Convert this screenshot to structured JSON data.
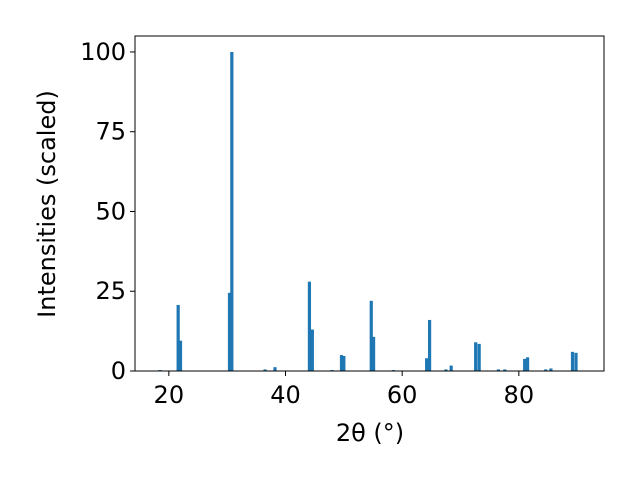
{
  "chart_data": {
    "type": "bar",
    "xlabel": "2θ (°)",
    "ylabel": "Intensities (scaled)",
    "x": [
      18.5,
      21.6,
      22.0,
      30.4,
      30.8,
      36.5,
      38.2,
      44.1,
      44.6,
      48.0,
      49.6,
      50.0,
      54.7,
      55.1,
      58.5,
      64.2,
      64.7,
      67.5,
      68.4,
      72.6,
      73.2,
      76.5,
      77.6,
      81.0,
      81.5,
      84.6,
      85.5,
      89.2,
      89.8
    ],
    "values": [
      0.3,
      20.7,
      9.5,
      24.5,
      100,
      0.5,
      1.2,
      28,
      13,
      0.3,
      5,
      4.7,
      22,
      10.7,
      0.3,
      4,
      16,
      0.5,
      1.7,
      9,
      8.5,
      0.5,
      0.5,
      3.8,
      4.3,
      0.5,
      0.8,
      6,
      5.7
    ],
    "color": "#1f77b4",
    "xlim": [
      14.2,
      94.6
    ],
    "xticks": [
      20,
      40,
      60,
      80
    ],
    "ylim": [
      0,
      105
    ],
    "yticks": [
      0,
      25,
      50,
      75,
      100
    ]
  }
}
